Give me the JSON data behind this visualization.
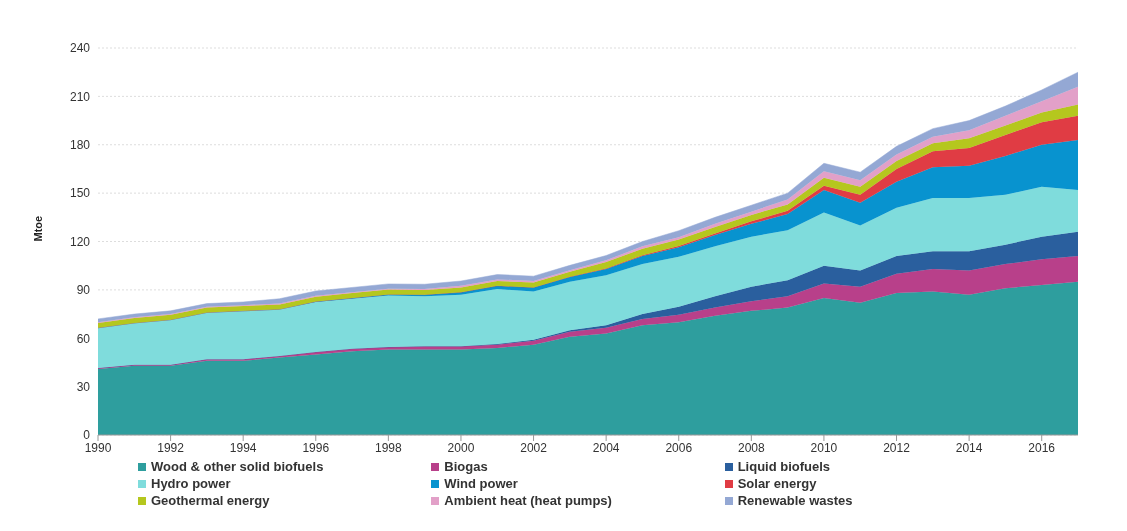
{
  "chart_data": {
    "type": "area",
    "stacked": true,
    "ylabel": "Mtoe",
    "x": [
      1990,
      1991,
      1992,
      1993,
      1994,
      1995,
      1996,
      1997,
      1998,
      1999,
      2000,
      2001,
      2002,
      2003,
      2004,
      2005,
      2006,
      2007,
      2008,
      2009,
      2010,
      2011,
      2012,
      2013,
      2014,
      2015,
      2016,
      2017
    ],
    "xlim": [
      1990,
      2017
    ],
    "xticks": [
      1990,
      1992,
      1994,
      1996,
      1998,
      2000,
      2002,
      2004,
      2006,
      2008,
      2010,
      2012,
      2014,
      2016
    ],
    "ylim": [
      0,
      240
    ],
    "yticks": [
      0,
      30,
      60,
      90,
      120,
      150,
      180,
      210,
      240
    ],
    "grid": "y",
    "legend": "bottom",
    "marker": "none",
    "series": [
      {
        "name": "Wood & other solid biofuels",
        "color": "#2e9e9e",
        "values": [
          41,
          43,
          43,
          46,
          46,
          48,
          50,
          52,
          53,
          53,
          53,
          54,
          56,
          61,
          63,
          68,
          70,
          74,
          77,
          79,
          85,
          82,
          88,
          89,
          87,
          91,
          93,
          95
        ]
      },
      {
        "name": "Biogas",
        "color": "#b8408a",
        "values": [
          0.5,
          0.5,
          0.5,
          1,
          1,
          1,
          1.5,
          1.5,
          1.5,
          2,
          2,
          2,
          2.5,
          3,
          3.5,
          4,
          4.5,
          5,
          6,
          7,
          9,
          10,
          12,
          14,
          15,
          15,
          16,
          16
        ]
      },
      {
        "name": "Liquid biofuels",
        "color": "#2a5f9e",
        "values": [
          0,
          0,
          0,
          0,
          0,
          0,
          0,
          0,
          0,
          0,
          0,
          0.5,
          0.5,
          1,
          1.5,
          3,
          5,
          7,
          9,
          10,
          11,
          10,
          11,
          11,
          12,
          12,
          14,
          15
        ]
      },
      {
        "name": "Hydro power",
        "color": "#7fdcdc",
        "values": [
          25,
          26,
          28,
          29,
          30,
          29,
          31,
          31,
          32,
          31,
          32,
          34,
          30,
          30,
          31,
          31,
          31,
          31,
          31,
          31,
          33,
          28,
          30,
          33,
          33,
          31,
          31,
          26
        ]
      },
      {
        "name": "Wind power",
        "color": "#0893cf",
        "values": [
          0,
          0,
          0,
          0,
          0,
          0,
          0.3,
          0.5,
          0.7,
          1,
          1.5,
          2,
          2.5,
          3,
          4,
          5,
          6,
          7,
          8,
          10,
          14,
          14,
          16,
          19,
          20,
          24,
          26,
          31
        ]
      },
      {
        "name": "Solar energy",
        "color": "#e03c44",
        "values": [
          0,
          0,
          0,
          0,
          0,
          0,
          0,
          0,
          0,
          0,
          0,
          0,
          0,
          0.2,
          0.3,
          0.5,
          0.7,
          1,
          1.5,
          2,
          2.5,
          5,
          8,
          10,
          11,
          13,
          14,
          15
        ]
      },
      {
        "name": "Geothermal energy",
        "color": "#b5c71e",
        "values": [
          3,
          3,
          3,
          3,
          3,
          3,
          3,
          3,
          3,
          3,
          3,
          3,
          3,
          3,
          4,
          4,
          4,
          4,
          4,
          4,
          5,
          5,
          5,
          5,
          6,
          6,
          6,
          7
        ]
      },
      {
        "name": "Ambient heat (heat pumps)",
        "color": "#e2a0c8",
        "values": [
          0.5,
          0.5,
          0.5,
          0.5,
          0.5,
          0.5,
          0.5,
          0.5,
          0.5,
          0.5,
          1,
          1,
          1,
          1,
          1,
          1.5,
          1.5,
          2,
          2,
          3,
          4,
          4,
          4,
          4,
          5,
          6,
          7,
          11
        ]
      },
      {
        "name": "Renewable wastes",
        "color": "#94a8d4",
        "values": [
          2,
          2,
          2,
          2,
          2,
          3,
          3,
          3,
          3,
          3,
          3,
          3,
          3,
          3,
          3,
          3,
          4,
          4,
          4,
          4,
          5,
          5,
          5,
          5,
          6,
          6,
          7,
          9
        ]
      }
    ]
  }
}
